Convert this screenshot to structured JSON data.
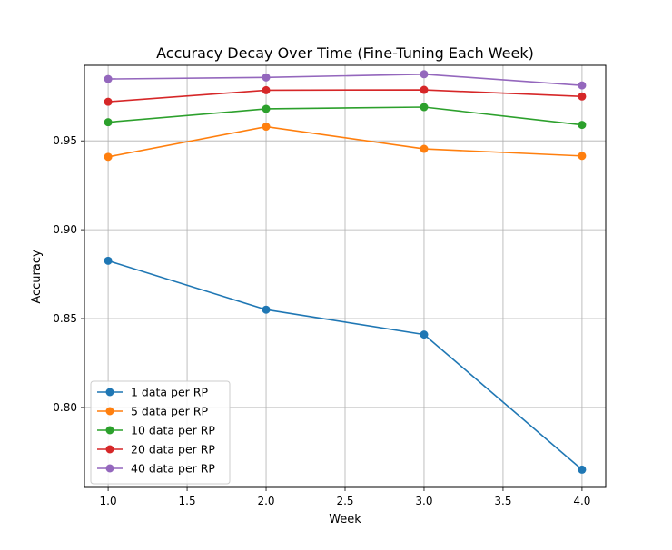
{
  "chart_data": {
    "type": "line",
    "title": "Accuracy Decay Over Time (Fine-Tuning Each Week)",
    "xlabel": "Week",
    "ylabel": "Accuracy",
    "xlim": [
      0.85,
      4.15
    ],
    "ylim": [
      0.755,
      0.9925
    ],
    "xticks": [
      1.0,
      1.5,
      2.0,
      2.5,
      3.0,
      3.5,
      4.0
    ],
    "xtick_labels": [
      "1.0",
      "1.5",
      "2.0",
      "2.5",
      "3.0",
      "3.5",
      "4.0"
    ],
    "yticks": [
      0.8,
      0.85,
      0.9,
      0.95
    ],
    "ytick_labels": [
      "0.80",
      "0.85",
      "0.90",
      "0.95"
    ],
    "grid": true,
    "legend_position": "lower-left",
    "x": [
      1.0,
      2.0,
      3.0,
      4.0
    ],
    "series": [
      {
        "name": "1 data per RP",
        "color": "#1f77b4",
        "values": [
          0.8825,
          0.855,
          0.841,
          0.765
        ]
      },
      {
        "name": "5 data per RP",
        "color": "#ff7f0e",
        "values": [
          0.941,
          0.958,
          0.9455,
          0.9415
        ]
      },
      {
        "name": "10 data per RP",
        "color": "#2ca02c",
        "values": [
          0.9605,
          0.968,
          0.969,
          0.959
        ]
      },
      {
        "name": "20 data per RP",
        "color": "#d62728",
        "values": [
          0.972,
          0.9785,
          0.9787,
          0.975
        ]
      },
      {
        "name": "40 data per RP",
        "color": "#9467bd",
        "values": [
          0.9848,
          0.9857,
          0.9875,
          0.9812
        ]
      }
    ]
  }
}
